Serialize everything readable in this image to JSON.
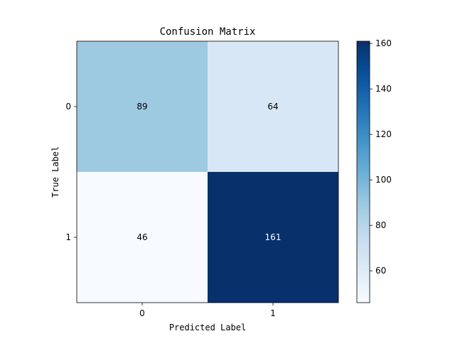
{
  "chart_data": {
    "type": "heatmap",
    "title": "Confusion Matrix",
    "xlabel": "Predicted Label",
    "ylabel": "True Label",
    "x_categories": [
      "0",
      "1"
    ],
    "y_categories": [
      "0",
      "1"
    ],
    "values": [
      [
        89,
        64
      ],
      [
        46,
        161
      ]
    ],
    "colormap": "Blues",
    "colorbar": {
      "min": 46,
      "max": 161,
      "ticks": [
        60,
        80,
        100,
        120,
        140,
        160
      ],
      "tick_labels": [
        "60",
        "80",
        "100",
        "120",
        "140",
        "160"
      ]
    },
    "text_colors": {
      "dark": "#000000",
      "light": "#ffffff"
    },
    "grid": false
  }
}
